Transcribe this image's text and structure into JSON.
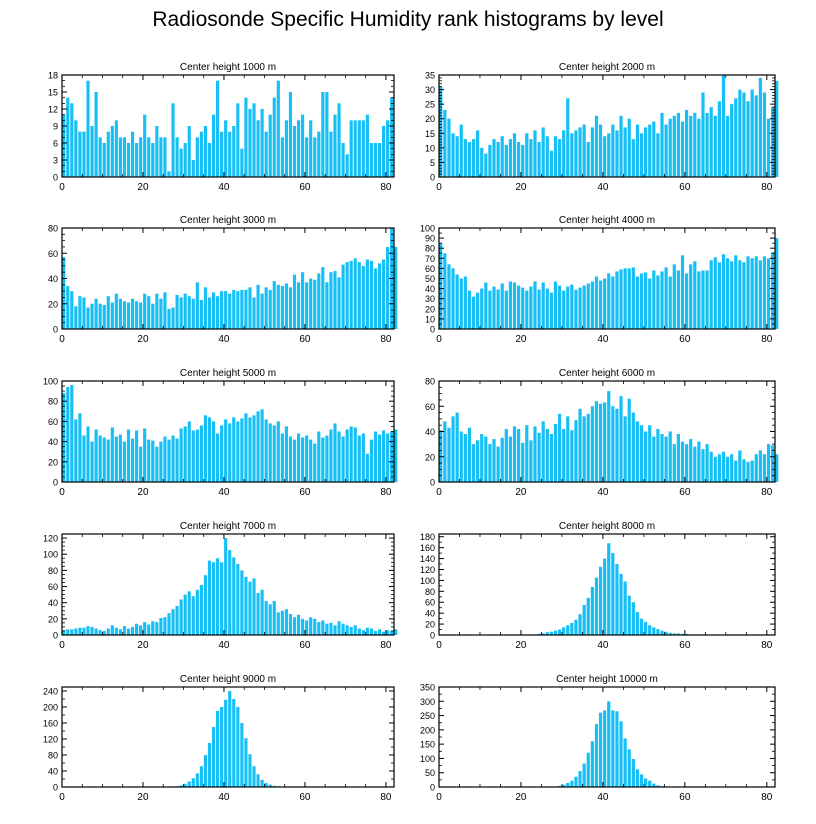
{
  "title": "Radiosonde Specific Humidity rank histograms by level",
  "colors": {
    "bar": "#16BFF5",
    "bar_edge": "#0aa3da",
    "axis": "#000000"
  },
  "chart_data": [
    {
      "type": "bar",
      "title": "Center height 1000 m",
      "xlabel": "",
      "ylabel": "",
      "xlim": [
        0,
        82
      ],
      "ylim": [
        0,
        18
      ],
      "xticks": [
        0,
        20,
        40,
        60,
        80
      ],
      "yticks": [
        0,
        3,
        6,
        9,
        12,
        15,
        18
      ],
      "yminor": [
        1,
        2,
        4,
        5,
        7,
        8,
        10,
        11,
        13,
        14,
        16,
        17
      ],
      "x_start": 0,
      "values": [
        11,
        14,
        13,
        10,
        8,
        8,
        17,
        9,
        15,
        7,
        6,
        8,
        9,
        10,
        7,
        7,
        6,
        8,
        6,
        7,
        11,
        7,
        6,
        9,
        7,
        7,
        1,
        13,
        7,
        5,
        6,
        9,
        3,
        7,
        8,
        9,
        6,
        11,
        17,
        8,
        10,
        8,
        9,
        13,
        5,
        14,
        12,
        13,
        10,
        12,
        8,
        11,
        14,
        17,
        7,
        10,
        15,
        9,
        10,
        11,
        7,
        10,
        7,
        8,
        15,
        15,
        8,
        11,
        13,
        6,
        4,
        10,
        10,
        10,
        10,
        11,
        6,
        6,
        6,
        9,
        10,
        14
      ]
    },
    {
      "type": "bar",
      "title": "Center height 2000 m",
      "xlabel": "",
      "ylabel": "",
      "xlim": [
        0,
        82
      ],
      "ylim": [
        0,
        35
      ],
      "xticks": [
        0,
        20,
        40,
        60,
        80
      ],
      "yticks": [
        0,
        5,
        10,
        15,
        20,
        25,
        30,
        35
      ],
      "yminor": [
        1,
        2,
        3,
        4,
        6,
        7,
        8,
        9,
        11,
        12,
        13,
        14,
        16,
        17,
        18,
        19,
        21,
        22,
        23,
        24,
        26,
        27,
        28,
        29,
        31,
        32,
        33,
        34
      ],
      "x_start": 0,
      "values": [
        31,
        23,
        20,
        15,
        14,
        18,
        13,
        12,
        13,
        16,
        10,
        8,
        11,
        13,
        12,
        14,
        11,
        13,
        15,
        12,
        11,
        15,
        13,
        16,
        12,
        17,
        14,
        9,
        14,
        13,
        16,
        27,
        15,
        16,
        17,
        18,
        12,
        17,
        21,
        18,
        14,
        15,
        18,
        16,
        21,
        17,
        20,
        13,
        18,
        15,
        17,
        18,
        19,
        15,
        22,
        18,
        20,
        21,
        22,
        19,
        23,
        21,
        22,
        20,
        29,
        22,
        24,
        21,
        26,
        35,
        21,
        25,
        27,
        30,
        29,
        26,
        30,
        28,
        34,
        29,
        20,
        24,
        33
      ]
    },
    {
      "type": "bar",
      "title": "Center height 3000 m",
      "xlabel": "",
      "ylabel": "",
      "xlim": [
        0,
        82
      ],
      "ylim": [
        0,
        80
      ],
      "xticks": [
        0,
        20,
        40,
        60,
        80
      ],
      "yticks": [
        0,
        20,
        40,
        60,
        80
      ],
      "yminor": [
        5,
        10,
        15,
        25,
        30,
        35,
        45,
        50,
        55,
        65,
        70,
        75
      ],
      "x_start": 0,
      "values": [
        57,
        34,
        30,
        18,
        26,
        25,
        17,
        20,
        24,
        20,
        19,
        26,
        21,
        28,
        24,
        22,
        21,
        24,
        22,
        21,
        28,
        26,
        20,
        28,
        24,
        29,
        16,
        17,
        27,
        25,
        28,
        26,
        24,
        37,
        23,
        33,
        25,
        29,
        26,
        30,
        30,
        28,
        31,
        30,
        31,
        31,
        33,
        25,
        35,
        28,
        33,
        31,
        38,
        35,
        34,
        36,
        33,
        43,
        37,
        45,
        37,
        40,
        39,
        44,
        49,
        37,
        45,
        46,
        41,
        51,
        53,
        54,
        56,
        53,
        50,
        55,
        54,
        48,
        52,
        55,
        65,
        80,
        65
      ]
    },
    {
      "type": "bar",
      "title": "Center height 4000 m",
      "xlabel": "",
      "ylabel": "",
      "xlim": [
        0,
        82
      ],
      "ylim": [
        0,
        100
      ],
      "xticks": [
        0,
        20,
        40,
        60,
        80
      ],
      "yticks": [
        0,
        10,
        20,
        30,
        40,
        50,
        60,
        70,
        80,
        90,
        100
      ],
      "yminor": [
        5,
        15,
        25,
        35,
        45,
        55,
        65,
        75,
        85,
        95
      ],
      "x_start": 0,
      "values": [
        85,
        75,
        64,
        60,
        54,
        50,
        52,
        38,
        32,
        36,
        40,
        46,
        38,
        42,
        39,
        45,
        38,
        47,
        46,
        43,
        41,
        38,
        42,
        47,
        39,
        46,
        40,
        36,
        47,
        43,
        38,
        42,
        44,
        39,
        41,
        43,
        45,
        47,
        52,
        48,
        50,
        55,
        52,
        57,
        59,
        60,
        60,
        61,
        52,
        55,
        56,
        50,
        58,
        53,
        57,
        61,
        52,
        64,
        58,
        73,
        55,
        64,
        67,
        57,
        58,
        58,
        68,
        71,
        66,
        74,
        70,
        67,
        73,
        68,
        66,
        72,
        70,
        72,
        68,
        72,
        70,
        76,
        90
      ]
    },
    {
      "type": "bar",
      "title": "Center height 5000 m",
      "xlabel": "",
      "ylabel": "",
      "xlim": [
        0,
        82
      ],
      "ylim": [
        0,
        100
      ],
      "xticks": [
        0,
        20,
        40,
        60,
        80
      ],
      "yticks": [
        0,
        20,
        40,
        60,
        80,
        100
      ],
      "yminor": [
        5,
        10,
        15,
        25,
        30,
        35,
        45,
        50,
        55,
        65,
        70,
        75,
        85,
        90,
        95
      ],
      "x_start": 0,
      "values": [
        88,
        94,
        96,
        62,
        68,
        46,
        55,
        40,
        52,
        46,
        44,
        42,
        54,
        45,
        47,
        40,
        52,
        43,
        51,
        35,
        53,
        42,
        41,
        35,
        40,
        45,
        42,
        46,
        43,
        53,
        55,
        60,
        51,
        52,
        56,
        66,
        64,
        60,
        48,
        56,
        62,
        58,
        64,
        60,
        63,
        68,
        64,
        66,
        70,
        72,
        62,
        58,
        56,
        60,
        48,
        55,
        45,
        42,
        48,
        44,
        46,
        42,
        38,
        50,
        44,
        46,
        52,
        58,
        50,
        45,
        52,
        55,
        54,
        46,
        48,
        28,
        42,
        50,
        47,
        51,
        48,
        50,
        52
      ]
    },
    {
      "type": "bar",
      "title": "Center height 6000 m",
      "xlabel": "",
      "ylabel": "",
      "xlim": [
        0,
        82
      ],
      "ylim": [
        0,
        80
      ],
      "xticks": [
        0,
        20,
        40,
        60,
        80
      ],
      "yticks": [
        0,
        20,
        40,
        60,
        80
      ],
      "yminor": [
        5,
        10,
        15,
        25,
        30,
        35,
        45,
        50,
        55,
        65,
        70,
        75
      ],
      "x_start": 0,
      "values": [
        41,
        48,
        43,
        52,
        55,
        40,
        38,
        43,
        30,
        33,
        38,
        36,
        30,
        34,
        28,
        35,
        42,
        36,
        44,
        42,
        31,
        45,
        33,
        44,
        39,
        48,
        42,
        38,
        46,
        54,
        42,
        52,
        41,
        49,
        58,
        52,
        54,
        60,
        64,
        62,
        63,
        72,
        60,
        58,
        68,
        52,
        66,
        55,
        48,
        45,
        40,
        45,
        36,
        42,
        38,
        36,
        40,
        30,
        38,
        32,
        30,
        34,
        28,
        32,
        26,
        30,
        24,
        20,
        22,
        24,
        20,
        22,
        17,
        25,
        18,
        16,
        17,
        22,
        25,
        22,
        30,
        29,
        22
      ]
    },
    {
      "type": "bar",
      "title": "Center height 7000 m",
      "xlabel": "",
      "ylabel": "",
      "xlim": [
        0,
        82
      ],
      "ylim": [
        0,
        125
      ],
      "xticks": [
        0,
        20,
        40,
        60,
        80
      ],
      "yticks": [
        0,
        20,
        40,
        60,
        80,
        100,
        120
      ],
      "yminor": [
        5,
        10,
        15,
        25,
        30,
        35,
        45,
        50,
        55,
        65,
        70,
        75,
        85,
        90,
        95,
        105,
        110,
        115
      ],
      "x_start": 0,
      "values": [
        6,
        7,
        7,
        8,
        9,
        9,
        11,
        10,
        8,
        6,
        5,
        8,
        12,
        9,
        7,
        11,
        8,
        10,
        14,
        12,
        16,
        13,
        17,
        16,
        21,
        22,
        27,
        32,
        36,
        44,
        50,
        54,
        48,
        56,
        62,
        74,
        92,
        90,
        95,
        90,
        120,
        105,
        96,
        88,
        80,
        72,
        66,
        70,
        52,
        56,
        42,
        38,
        42,
        28,
        30,
        32,
        26,
        22,
        25,
        20,
        18,
        22,
        20,
        16,
        18,
        14,
        15,
        12,
        17,
        14,
        12,
        10,
        12,
        8,
        6,
        9,
        8,
        5,
        7,
        4,
        6,
        5,
        7
      ]
    },
    {
      "type": "bar",
      "title": "Center height 8000 m",
      "xlabel": "",
      "ylabel": "",
      "xlim": [
        0,
        82
      ],
      "ylim": [
        0,
        185
      ],
      "xticks": [
        0,
        20,
        40,
        60,
        80
      ],
      "yticks": [
        0,
        20,
        40,
        60,
        80,
        100,
        120,
        140,
        160,
        180
      ],
      "yminor": [
        10,
        30,
        50,
        70,
        90,
        110,
        130,
        150,
        170
      ],
      "x_start": 0,
      "values": [
        0,
        0,
        0,
        0,
        0,
        0,
        0,
        0,
        0,
        0,
        0,
        0,
        0,
        0,
        0,
        0,
        0,
        0,
        0,
        0,
        0,
        0,
        1,
        1,
        2,
        3,
        5,
        6,
        8,
        10,
        14,
        18,
        22,
        28,
        38,
        55,
        68,
        88,
        105,
        125,
        140,
        168,
        150,
        130,
        112,
        98,
        72,
        60,
        42,
        30,
        24,
        18,
        14,
        11,
        8,
        6,
        4,
        3,
        3,
        2,
        2,
        1,
        1,
        0,
        0,
        0,
        0,
        0,
        0,
        0,
        0,
        0,
        0,
        0,
        0,
        0,
        0,
        0,
        0,
        0,
        0,
        0,
        0
      ]
    },
    {
      "type": "bar",
      "title": "Center height 9000 m",
      "xlabel": "",
      "ylabel": "",
      "xlim": [
        0,
        82
      ],
      "ylim": [
        0,
        250
      ],
      "xticks": [
        0,
        20,
        40,
        60,
        80
      ],
      "yticks": [
        0,
        40,
        80,
        120,
        160,
        200,
        240
      ],
      "yminor": [
        20,
        60,
        100,
        140,
        180,
        220
      ],
      "x_start": 0,
      "values": [
        0,
        0,
        0,
        0,
        0,
        0,
        0,
        0,
        0,
        0,
        0,
        0,
        0,
        0,
        0,
        0,
        0,
        0,
        0,
        0,
        0,
        0,
        0,
        0,
        0,
        0,
        0,
        1,
        2,
        4,
        8,
        14,
        22,
        34,
        52,
        80,
        110,
        150,
        190,
        200,
        218,
        240,
        220,
        200,
        160,
        122,
        82,
        52,
        32,
        18,
        10,
        6,
        3,
        2,
        1,
        1,
        0,
        0,
        0,
        0,
        0,
        0,
        0,
        0,
        0,
        0,
        0,
        0,
        0,
        0,
        0,
        0,
        0,
        0,
        0,
        0,
        0,
        0,
        0,
        0,
        0,
        0,
        0
      ]
    },
    {
      "type": "bar",
      "title": "Center height 10000 m",
      "xlabel": "",
      "ylabel": "",
      "xlim": [
        0,
        82
      ],
      "ylim": [
        0,
        350
      ],
      "xticks": [
        0,
        20,
        40,
        60,
        80
      ],
      "yticks": [
        0,
        50,
        100,
        150,
        200,
        250,
        300,
        350
      ],
      "yminor": [
        25,
        75,
        125,
        175,
        225,
        275,
        325
      ],
      "x_start": 0,
      "values": [
        0,
        0,
        0,
        0,
        0,
        0,
        0,
        0,
        0,
        0,
        0,
        0,
        0,
        0,
        0,
        0,
        0,
        0,
        0,
        0,
        0,
        0,
        0,
        0,
        0,
        0,
        0,
        1,
        2,
        4,
        8,
        14,
        22,
        36,
        56,
        82,
        120,
        160,
        220,
        260,
        268,
        300,
        268,
        265,
        230,
        170,
        132,
        98,
        62,
        44,
        30,
        22,
        12,
        6,
        3,
        2,
        1,
        1,
        0,
        0,
        0,
        0,
        0,
        0,
        0,
        0,
        0,
        0,
        0,
        0,
        0,
        0,
        0,
        0,
        0,
        0,
        0,
        0,
        0,
        0,
        0,
        0,
        0
      ]
    }
  ]
}
